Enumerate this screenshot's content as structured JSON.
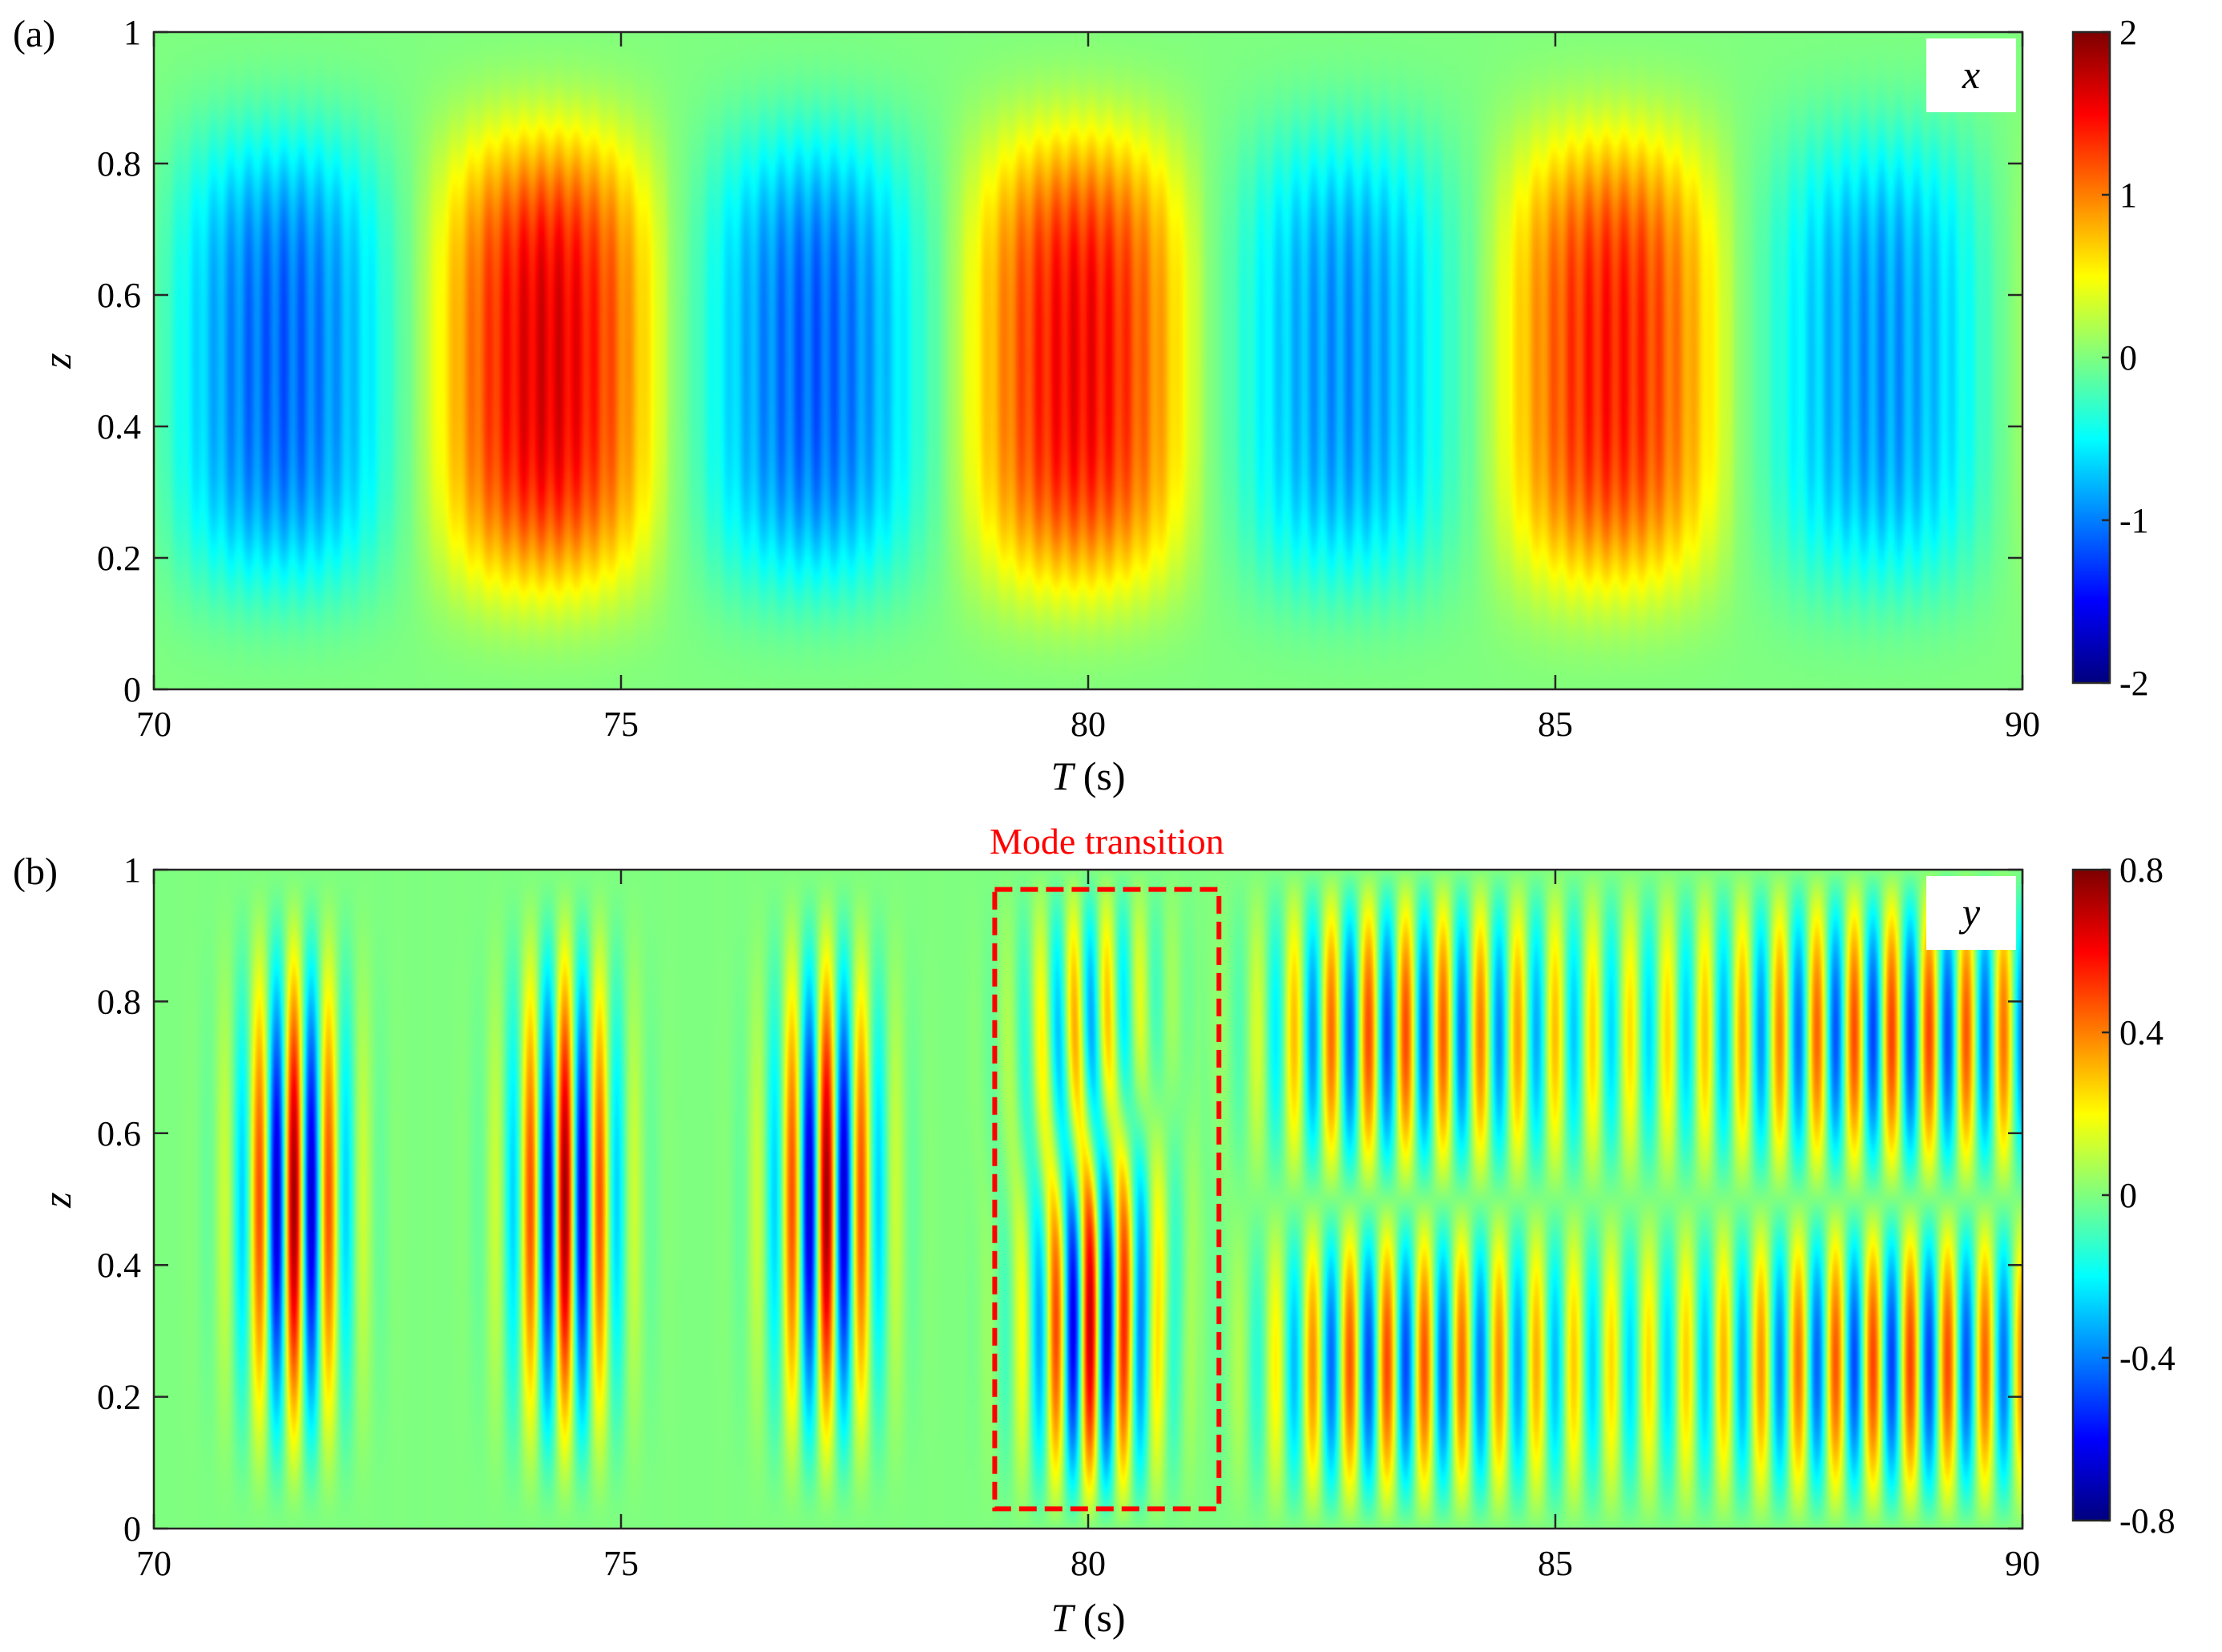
{
  "chart_data": [
    {
      "type": "heatmap",
      "panel_label": "(a)",
      "variable_label": "x",
      "xlabel_main": "T",
      "xlabel_unit": " (s)",
      "ylabel": "z",
      "xlim": [
        70,
        90
      ],
      "ylim": [
        0,
        1
      ],
      "x_ticks": [
        70,
        75,
        80,
        85,
        90
      ],
      "x_tick_labels": [
        "70",
        "75",
        "80",
        "85",
        "90"
      ],
      "y_ticks": [
        0,
        0.2,
        0.4,
        0.6,
        0.8,
        1
      ],
      "y_tick_labels": [
        "0",
        "0.2",
        "0.4",
        "0.6",
        "0.8",
        "1"
      ],
      "colorbar": {
        "colormap": "jet",
        "range": [
          -2,
          2
        ],
        "ticks": [
          2,
          1,
          0,
          -1,
          -2
        ],
        "tick_labels": [
          "2",
          "1",
          "0",
          "-1",
          "-2"
        ]
      },
      "field": {
        "description_values": "slow standing oscillation with superimposed fast ripple",
        "slow_period_s": 5.7,
        "slow_amplitude": 1.4,
        "fast_period_s": 0.19,
        "fast_amplitude": 0.15,
        "peak_times_s": [
          71.2,
          74.2,
          76.8,
          79.9,
          82.6,
          85.5,
          88.3
        ],
        "peak_values": [
          -1.1,
          1.6,
          -1.1,
          1.5,
          -0.9,
          1.4,
          -0.9
        ]
      }
    },
    {
      "type": "heatmap",
      "panel_label": "(b)",
      "variable_label": "y",
      "xlabel_main": "T",
      "xlabel_unit": " (s)",
      "ylabel": "z",
      "xlim": [
        70,
        90
      ],
      "ylim": [
        0,
        1
      ],
      "x_ticks": [
        70,
        75,
        80,
        85,
        90
      ],
      "x_tick_labels": [
        "70",
        "75",
        "80",
        "85",
        "90"
      ],
      "y_ticks": [
        0,
        0.2,
        0.4,
        0.6,
        0.8,
        1
      ],
      "y_tick_labels": [
        "0",
        "0.2",
        "0.4",
        "0.6",
        "0.8",
        "1"
      ],
      "colorbar": {
        "colormap": "jet",
        "range": [
          -0.8,
          0.8
        ],
        "ticks": [
          0.8,
          0.4,
          0,
          -0.4,
          -0.8
        ],
        "tick_labels": [
          "0.8",
          "0.4",
          "0",
          "-0.4",
          "-0.8"
        ]
      },
      "annotation": {
        "text": "Mode transition",
        "box_x": [
          79.0,
          81.4
        ],
        "box_z": [
          0.03,
          0.97
        ],
        "color": "#ff0000"
      },
      "field": {
        "fast_period_s": 0.38,
        "amplitude": 0.75,
        "mode1_bursts_s": [
          71.5,
          74.4,
          77.2
        ],
        "transition_s": [
          79.0,
          81.4
        ],
        "mode2_start_s": 82.0
      }
    }
  ]
}
